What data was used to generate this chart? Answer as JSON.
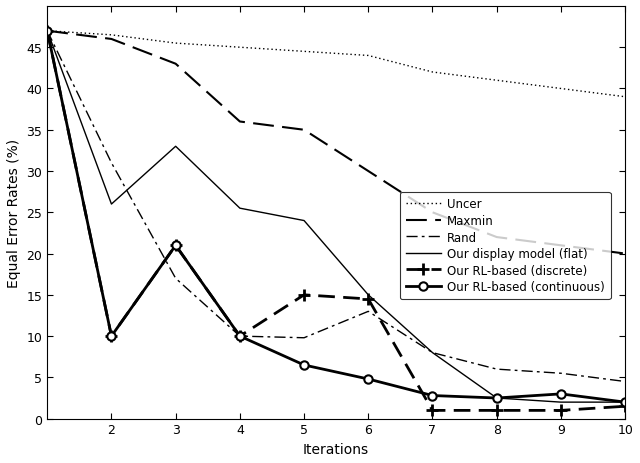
{
  "x": [
    1,
    2,
    3,
    4,
    5,
    6,
    7,
    8,
    9,
    10
  ],
  "Uncer": [
    47,
    46.5,
    45.5,
    45,
    44.5,
    44,
    42,
    41,
    40,
    39
  ],
  "Maxmin": [
    47,
    46,
    43,
    36,
    35,
    30,
    25,
    22,
    21,
    20
  ],
  "Rand": [
    47,
    31,
    17,
    10,
    9.8,
    13,
    8,
    6,
    5.5,
    4.5
  ],
  "Flat": [
    47,
    26,
    33,
    25.5,
    24,
    15,
    8,
    2.5,
    2,
    2
  ],
  "Discrete": [
    47,
    10,
    21,
    10,
    15,
    14.5,
    1,
    1,
    1,
    1.5
  ],
  "Continuous": [
    47,
    10,
    21,
    10,
    6.5,
    4.8,
    2.8,
    2.5,
    3,
    2
  ],
  "xlabel": "Iterations",
  "ylabel": "Equal Error Rates (%)",
  "ylim": [
    0,
    50
  ],
  "xlim": [
    1,
    10
  ],
  "xticks": [
    2,
    3,
    4,
    5,
    6,
    7,
    8,
    9,
    10
  ],
  "yticks": [
    0,
    5,
    10,
    15,
    20,
    25,
    30,
    35,
    40,
    45
  ],
  "legend_labels": [
    "Uncer",
    "Maxmin",
    "Rand",
    "Our display model (flat)",
    "Our RL-based (discrete)",
    "Our RL-based (continuous)"
  ],
  "background": "#ffffff"
}
